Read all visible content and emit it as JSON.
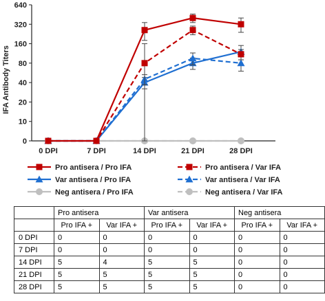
{
  "chart_data": {
    "type": "line",
    "title": "",
    "ylabel": "IFA Antibody Titers",
    "xlabel": "",
    "categories": [
      "0 DPI",
      "7 DPI",
      "14 DPI",
      "21 DPI",
      "28 DPI"
    ],
    "y_ticks": [
      0,
      10,
      20,
      40,
      80,
      160,
      320,
      640
    ],
    "y_tick_labels": [
      "0",
      "10",
      "20",
      "40",
      "80",
      "160",
      "320",
      "640"
    ],
    "y_scale": "log2 with zero baseline",
    "grid": false,
    "legend_placement": "bottom",
    "series": [
      {
        "name": "Pro antisera / Pro IFA",
        "values": [
          0,
          0,
          260,
          400,
          320
        ],
        "err": [
          0,
          0,
          80,
          60,
          80
        ],
        "color": "#c00000",
        "dash": "solid",
        "marker": "square"
      },
      {
        "name": "Pro antisera / Var IFA",
        "values": [
          0,
          0,
          80,
          260,
          110
        ],
        "err": [
          0,
          0,
          80,
          40,
          20
        ],
        "color": "#c00000",
        "dash": "dashed",
        "marker": "square"
      },
      {
        "name": "Var antisera / Pro IFA",
        "values": [
          0,
          0,
          40,
          80,
          120
        ],
        "err": [
          0,
          0,
          8,
          16,
          30
        ],
        "color": "#1f6fd1",
        "dash": "solid",
        "marker": "triangle"
      },
      {
        "name": "Var antisera / Var IFA",
        "values": [
          0,
          0,
          45,
          95,
          80
        ],
        "err": [
          0,
          0,
          8,
          20,
          20
        ],
        "color": "#1f6fd1",
        "dash": "dashed",
        "marker": "triangle"
      },
      {
        "name": "Neg antisera / Pro IFA",
        "values": [
          0,
          0,
          0,
          0,
          0
        ],
        "err": [
          0,
          0,
          0,
          0,
          0
        ],
        "color": "#bfbfbf",
        "dash": "solid",
        "marker": "circle"
      },
      {
        "name": "Neg antisera / Var IFA",
        "values": [
          0,
          0,
          0,
          0,
          0
        ],
        "err": [
          0,
          0,
          0,
          0,
          0
        ],
        "color": "#bfbfbf",
        "dash": "dashed",
        "marker": "circle"
      }
    ]
  },
  "table": {
    "groups": [
      "Pro antisera",
      "Var antisera",
      "Neg antisera"
    ],
    "subheaders": [
      "Pro IFA +",
      "Var IFA +",
      "Pro IFA +",
      "Var IFA +",
      "Pro IFA +",
      "Var IFA +"
    ],
    "rows": [
      {
        "label": "0 DPI",
        "cells": [
          "0",
          "0",
          "0",
          "0",
          "0",
          "0"
        ]
      },
      {
        "label": "7 DPI",
        "cells": [
          "0",
          "0",
          "0",
          "0",
          "0",
          "0"
        ]
      },
      {
        "label": "14 DPI",
        "cells": [
          "5",
          "4",
          "5",
          "5",
          "0",
          "0"
        ]
      },
      {
        "label": "21 DPI",
        "cells": [
          "5",
          "5",
          "5",
          "5",
          "0",
          "0"
        ]
      },
      {
        "label": "28 DPI",
        "cells": [
          "5",
          "5",
          "5",
          "5",
          "0",
          "0"
        ]
      }
    ]
  }
}
